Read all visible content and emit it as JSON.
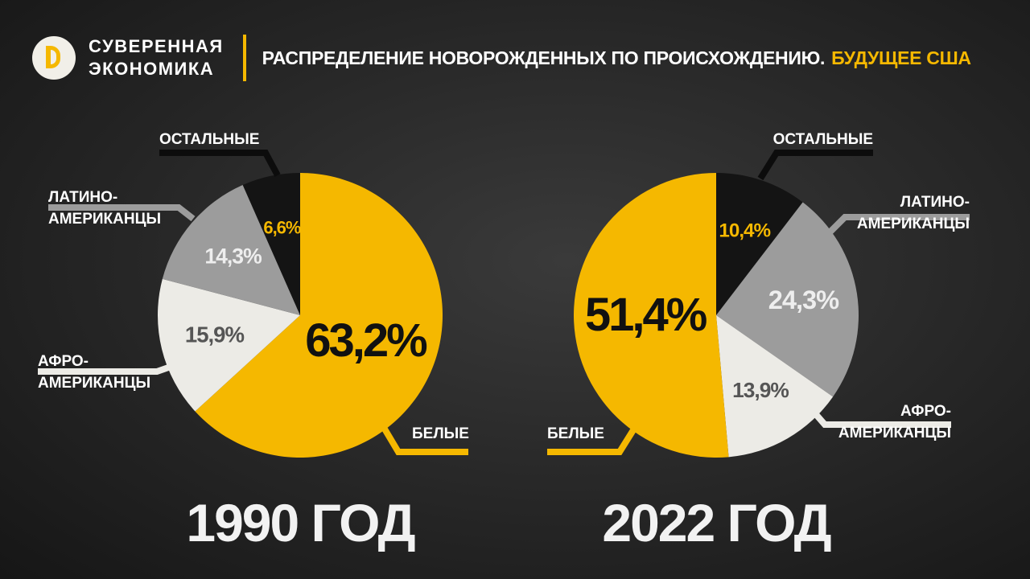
{
  "header": {
    "brand": [
      "СУВЕРЕННАЯ",
      "ЭКОНОМИКА"
    ],
    "title": "РАСПРЕДЕЛЕНИЕ НОВОРОЖДЕННЫХ ПО ПРОИСХОЖДЕНИЮ.",
    "highlight": "БУДУЩЕЕ США"
  },
  "chart_data": [
    {
      "type": "pie",
      "title": "1990 ГОД",
      "categories": [
        "БЕЛЫЕ",
        "АФРО-\nАМЕРИКАНЦЫ",
        "ЛАТИНО-\nАМЕРИКАНЦЫ",
        "ОСТАЛЬНЫЕ"
      ],
      "values": [
        63.2,
        15.9,
        14.3,
        6.6
      ],
      "value_labels": [
        "63,2%",
        "15,9%",
        "14,3%",
        "6,6%"
      ],
      "colors": [
        "#f5b800",
        "#ecebe6",
        "#9c9c9c",
        "#141414"
      ]
    },
    {
      "type": "pie",
      "title": "2022 ГОД",
      "categories": [
        "ОСТАЛЬНЫЕ",
        "ЛАТИНО-\nАМЕРИКАНЦЫ",
        "АФРО-\nАМЕРИКАНЦЫ",
        "БЕЛЫЕ"
      ],
      "values": [
        10.4,
        24.3,
        13.9,
        51.4
      ],
      "value_labels": [
        "10,4%",
        "24,3%",
        "13,9%",
        "51,4%"
      ],
      "colors": [
        "#141414",
        "#9c9c9c",
        "#ecebe6",
        "#f5b800"
      ]
    }
  ]
}
